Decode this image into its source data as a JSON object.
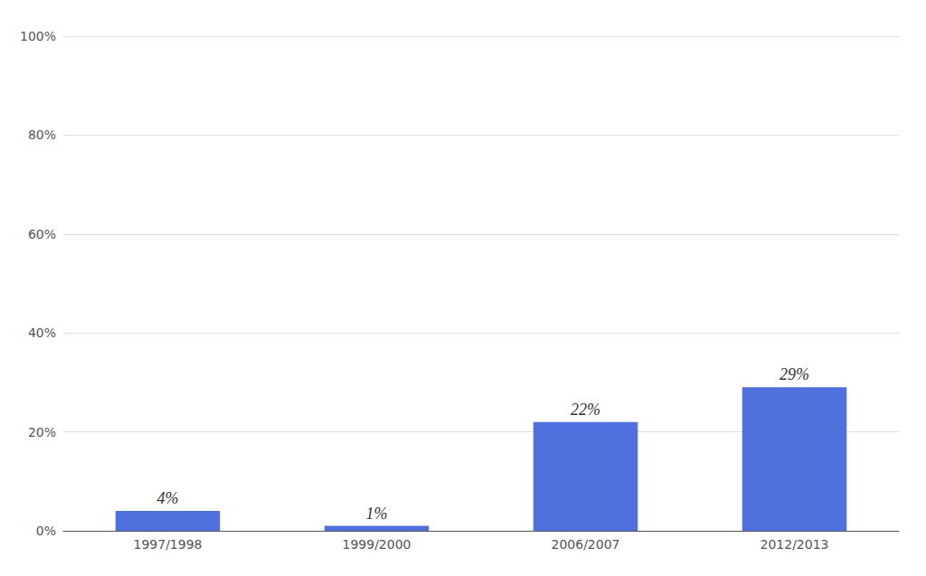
{
  "chart_data": {
    "type": "bar",
    "categories": [
      "1997/1998",
      "1999/2000",
      "2006/2007",
      "2012/2013"
    ],
    "values": [
      4,
      1,
      22,
      29
    ],
    "data_labels": true,
    "value_labels": [
      "4%",
      "1%",
      "22%",
      "29%"
    ],
    "ylim": [
      0,
      100
    ],
    "yticks": [
      {
        "value": 0,
        "label": "0%"
      },
      {
        "value": 20,
        "label": "20%"
      },
      {
        "value": 40,
        "label": "40%"
      },
      {
        "value": 60,
        "label": "60%"
      },
      {
        "value": 80,
        "label": "80%"
      },
      {
        "value": 100,
        "label": "100%"
      }
    ],
    "grid": true
  }
}
